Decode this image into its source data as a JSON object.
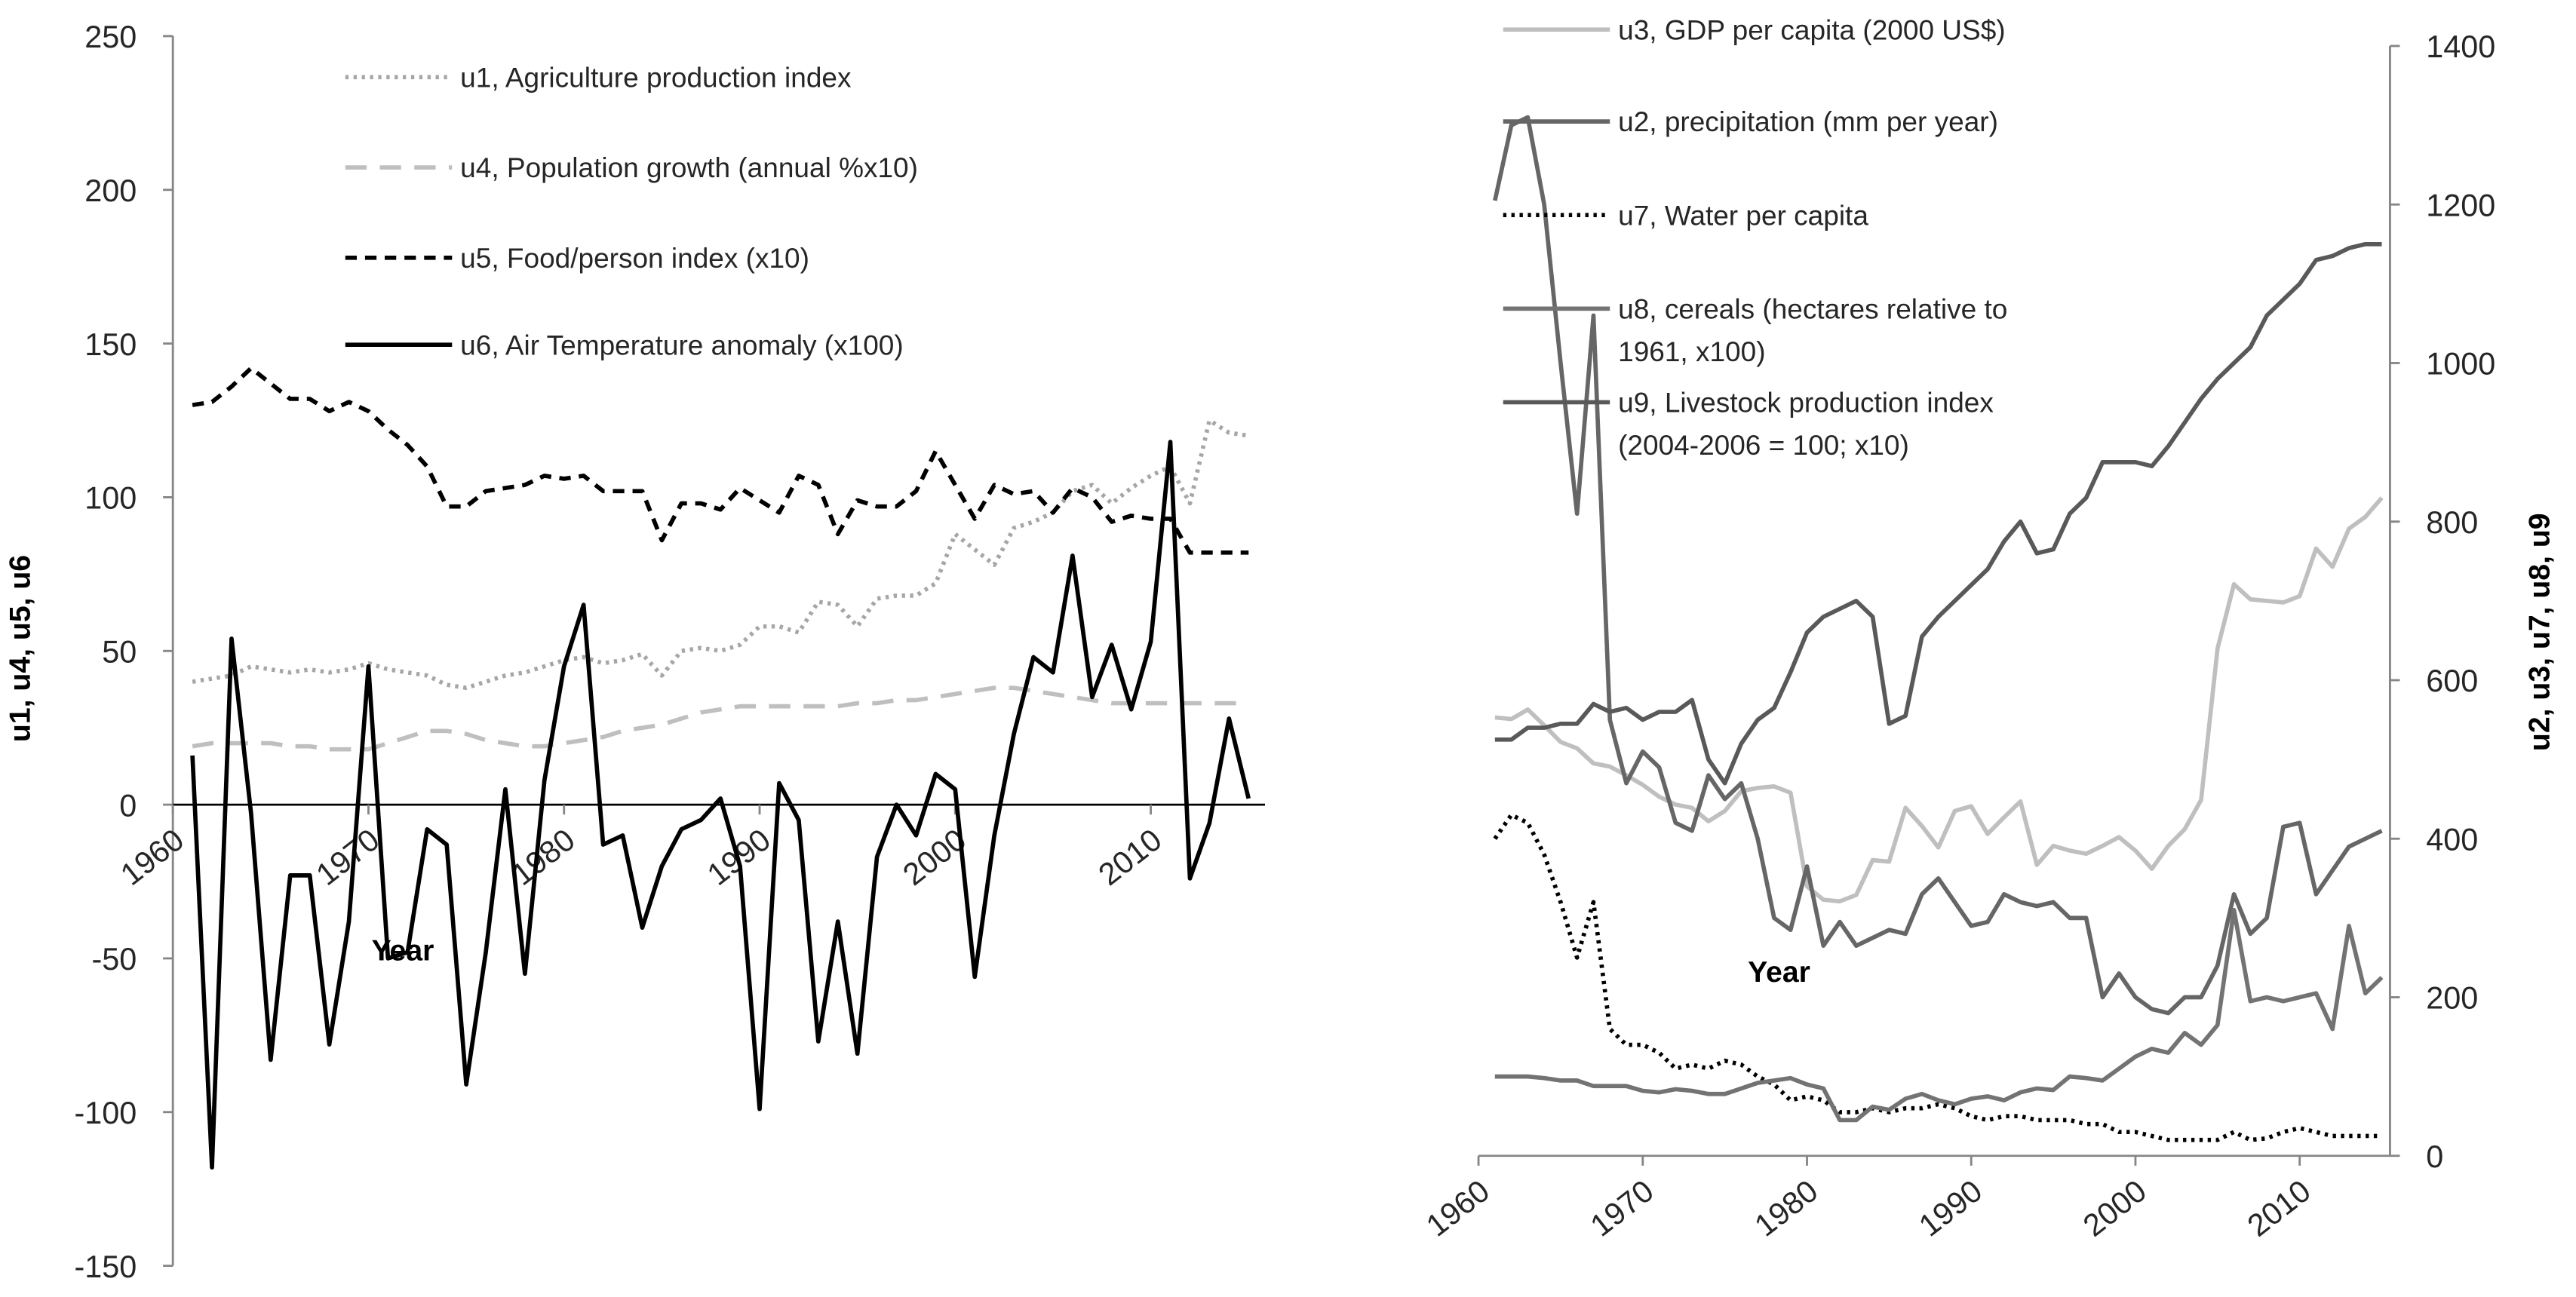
{
  "chart_data": [
    {
      "type": "line",
      "xlabel": "Year",
      "ylabel": "u1, u4, u5, u6",
      "axis_side": "left",
      "xaxis_at_zero": true,
      "xlim": [
        1960,
        2015
      ],
      "xticks": [
        1960,
        1970,
        1980,
        1990,
        2000,
        2010
      ],
      "ylim": [
        -150,
        250
      ],
      "yticks": [
        -150,
        -100,
        -50,
        0,
        50,
        100,
        150,
        200,
        250
      ],
      "x": [
        1961,
        1962,
        1963,
        1964,
        1965,
        1966,
        1967,
        1968,
        1969,
        1970,
        1971,
        1972,
        1973,
        1974,
        1975,
        1976,
        1977,
        1978,
        1979,
        1980,
        1981,
        1982,
        1983,
        1984,
        1985,
        1986,
        1987,
        1988,
        1989,
        1990,
        1991,
        1992,
        1993,
        1994,
        1995,
        1996,
        1997,
        1998,
        1999,
        2000,
        2001,
        2002,
        2003,
        2004,
        2005,
        2006,
        2007,
        2008,
        2009,
        2010,
        2011,
        2012,
        2013,
        2014,
        2015
      ],
      "series": [
        {
          "name": "u1, Agriculture production index",
          "color": "#a6a6a6",
          "dash": "dotted",
          "values": [
            40,
            41,
            42,
            45,
            44,
            43,
            44,
            43,
            44,
            46,
            44,
            43,
            42,
            39,
            38,
            40,
            42,
            43,
            45,
            47,
            48,
            46,
            47,
            49,
            42,
            50,
            51,
            50,
            52,
            58,
            58,
            56,
            66,
            65,
            58,
            67,
            68,
            68,
            72,
            88,
            83,
            78,
            90,
            92,
            95,
            102,
            104,
            98,
            103,
            107,
            110,
            98,
            125,
            121,
            120
          ]
        },
        {
          "name": "u4, Population growth (annual %x10)",
          "color": "#bfbfbf",
          "dash": "long-dashed",
          "values": [
            19,
            20,
            20,
            20,
            20,
            19,
            19,
            18,
            18,
            18,
            20,
            22,
            24,
            24,
            23,
            21,
            20,
            19,
            19,
            20,
            21,
            22,
            24,
            25,
            26,
            28,
            30,
            31,
            32,
            32,
            32,
            32,
            32,
            32,
            33,
            33,
            34,
            34,
            35,
            36,
            37,
            38,
            38,
            37,
            36,
            35,
            34,
            33,
            33,
            33,
            33,
            33,
            33,
            33,
            33
          ]
        },
        {
          "name": "u5, Food/person index (x10)",
          "color": "#000000",
          "dash": "dashed",
          "values": [
            130,
            131,
            136,
            142,
            137,
            132,
            132,
            128,
            131,
            128,
            122,
            117,
            110,
            97,
            97,
            102,
            103,
            104,
            107,
            106,
            107,
            102,
            102,
            102,
            86,
            98,
            98,
            96,
            103,
            99,
            95,
            107,
            104,
            88,
            99,
            97,
            97,
            102,
            115,
            104,
            93,
            104,
            101,
            102,
            95,
            103,
            100,
            92,
            94,
            93,
            93,
            82,
            82,
            82,
            82
          ]
        },
        {
          "name": "u6, Air Temperature anomaly (x100)",
          "color": "#000000",
          "dash": "solid",
          "values": [
            16,
            -118,
            54,
            -3,
            -83,
            -23,
            -23,
            -78,
            -38,
            45,
            -50,
            -48,
            -8,
            -13,
            -91,
            -48,
            5,
            -55,
            8,
            45,
            65,
            -13,
            -10,
            -40,
            -20,
            -8,
            -5,
            2,
            -20,
            -99,
            7,
            -5,
            -77,
            -38,
            -81,
            -17,
            0,
            -10,
            10,
            5,
            -56,
            -10,
            23,
            48,
            43,
            81,
            35,
            52,
            31,
            53,
            118,
            -24,
            -6,
            28,
            2
          ]
        }
      ]
    },
    {
      "type": "line",
      "xlabel": "Year",
      "ylabel": "u2, u3, u7, u8, u9",
      "axis_side": "right",
      "xaxis_at_zero": false,
      "xlim": [
        1960,
        2015
      ],
      "xticks": [
        1960,
        1970,
        1980,
        1990,
        2000,
        2010
      ],
      "ylim": [
        0,
        1400
      ],
      "yticks": [
        0,
        200,
        400,
        600,
        800,
        1000,
        1200,
        1400
      ],
      "x": [
        1961,
        1962,
        1963,
        1964,
        1965,
        1966,
        1967,
        1968,
        1969,
        1970,
        1971,
        1972,
        1973,
        1974,
        1975,
        1976,
        1977,
        1978,
        1979,
        1980,
        1981,
        1982,
        1983,
        1984,
        1985,
        1986,
        1987,
        1988,
        1989,
        1990,
        1991,
        1992,
        1993,
        1994,
        1995,
        1996,
        1997,
        1998,
        1999,
        2000,
        2001,
        2002,
        2003,
        2004,
        2005,
        2006,
        2007,
        2008,
        2009,
        2010,
        2011,
        2012,
        2013,
        2014,
        2015
      ],
      "series": [
        {
          "name": "u3, GDP per capita (2000 US$)",
          "color": "#bfbfbf",
          "dash": "solid",
          "values": [
            553,
            551,
            563,
            543,
            522,
            514,
            495,
            491,
            480,
            468,
            453,
            443,
            439,
            422,
            435,
            460,
            464,
            466,
            458,
            340,
            323,
            321,
            329,
            373,
            371,
            439,
            416,
            389,
            435,
            441,
            406,
            427,
            447,
            367,
            391,
            385,
            381,
            391,
            402,
            385,
            362,
            391,
            412,
            449,
            640,
            721,
            702,
            700,
            698,
            706,
            766,
            743,
            791,
            806,
            830
          ]
        },
        {
          "name": "u2, precipitation (mm per year)",
          "color": "#666666",
          "dash": "solid",
          "values": [
            1205,
            1300,
            1310,
            1200,
            1000,
            810,
            1060,
            550,
            470,
            510,
            490,
            420,
            410,
            480,
            450,
            470,
            400,
            300,
            285,
            365,
            265,
            295,
            265,
            275,
            285,
            280,
            330,
            350,
            320,
            290,
            295,
            330,
            320,
            315,
            320,
            300,
            300,
            200,
            230,
            200,
            185,
            180,
            200,
            200,
            240,
            330,
            280,
            300,
            415,
            420,
            330,
            360,
            390,
            400,
            410
          ]
        },
        {
          "name": "u7, Water per capita",
          "color": "#000000",
          "dash": "dotted",
          "values": [
            400,
            430,
            420,
            380,
            320,
            250,
            320,
            160,
            140,
            140,
            130,
            110,
            115,
            110,
            120,
            115,
            100,
            90,
            70,
            75,
            70,
            55,
            55,
            60,
            55,
            60,
            60,
            65,
            60,
            50,
            45,
            50,
            50,
            45,
            45,
            45,
            40,
            40,
            30,
            30,
            25,
            20,
            20,
            20,
            20,
            30,
            20,
            22,
            30,
            35,
            30,
            25,
            25,
            25,
            25
          ]
        },
        {
          "name": "u8, cereals (hectares relative to 1961, x100)",
          "color": "#737373",
          "dash": "solid",
          "values": [
            100,
            100,
            100,
            98,
            95,
            95,
            88,
            88,
            88,
            82,
            80,
            84,
            82,
            78,
            78,
            85,
            92,
            95,
            98,
            90,
            85,
            45,
            45,
            62,
            58,
            72,
            78,
            70,
            65,
            72,
            75,
            70,
            80,
            85,
            83,
            100,
            98,
            95,
            110,
            125,
            135,
            130,
            155,
            140,
            165,
            310,
            195,
            200,
            195,
            200,
            205,
            160,
            290,
            205,
            225
          ]
        },
        {
          "name": "u9, Livestock production index (2004-2006 = 100; x10)",
          "color": "#595959",
          "dash": "solid",
          "values": [
            525,
            525,
            540,
            540,
            545,
            545,
            570,
            560,
            565,
            550,
            560,
            560,
            575,
            500,
            470,
            520,
            550,
            565,
            610,
            660,
            680,
            690,
            700,
            680,
            545,
            555,
            655,
            680,
            700,
            720,
            740,
            775,
            800,
            760,
            765,
            810,
            830,
            875,
            875,
            875,
            870,
            895,
            925,
            955,
            980,
            1000,
            1020,
            1060,
            1080,
            1100,
            1130,
            1135,
            1145,
            1150,
            1150
          ]
        }
      ]
    }
  ]
}
